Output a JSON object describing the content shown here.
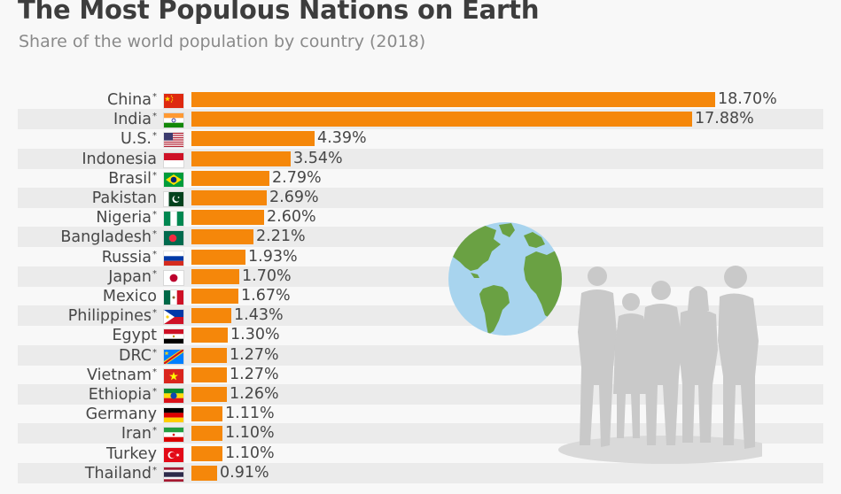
{
  "header": {
    "title": "The Most Populous Nations on Earth",
    "subtitle": "Share of the world population by country (2018)"
  },
  "colors": {
    "bar": "#f5870a",
    "stripe": "#ebebeb",
    "background": "#f8f8f8",
    "globe_ocean": "#a8d4ee",
    "globe_land": "#6aa143",
    "silhouette": "#c9c9c9"
  },
  "illustration": {
    "globe_icon": "globe-icon",
    "people_icon": "people-silhouette-icon"
  },
  "rows": [
    {
      "country": "China",
      "asterisk": "*",
      "value": "18.70%",
      "flag": "china"
    },
    {
      "country": "India",
      "asterisk": "*",
      "value": "17.88%",
      "flag": "india"
    },
    {
      "country": "U.S.",
      "asterisk": "*",
      "value": "4.39%",
      "flag": "us"
    },
    {
      "country": "Indonesia",
      "asterisk": "",
      "value": "3.54%",
      "flag": "indonesia"
    },
    {
      "country": "Brasil",
      "asterisk": "*",
      "value": "2.79%",
      "flag": "brazil"
    },
    {
      "country": "Pakistan",
      "asterisk": "",
      "value": "2.69%",
      "flag": "pakistan"
    },
    {
      "country": "Nigeria",
      "asterisk": "*",
      "value": "2.60%",
      "flag": "nigeria"
    },
    {
      "country": "Bangladesh",
      "asterisk": "*",
      "value": "2.21%",
      "flag": "bangladesh"
    },
    {
      "country": "Russia",
      "asterisk": "*",
      "value": "1.93%",
      "flag": "russia"
    },
    {
      "country": "Japan",
      "asterisk": "*",
      "value": "1.70%",
      "flag": "japan"
    },
    {
      "country": "Mexico",
      "asterisk": "",
      "value": "1.67%",
      "flag": "mexico"
    },
    {
      "country": "Philippines",
      "asterisk": "*",
      "value": "1.43%",
      "flag": "philippines"
    },
    {
      "country": "Egypt",
      "asterisk": "",
      "value": "1.30%",
      "flag": "egypt"
    },
    {
      "country": "DRC",
      "asterisk": "*",
      "value": "1.27%",
      "flag": "drc"
    },
    {
      "country": "Vietnam",
      "asterisk": "*",
      "value": "1.27%",
      "flag": "vietnam"
    },
    {
      "country": "Ethiopia",
      "asterisk": "*",
      "value": "1.26%",
      "flag": "ethiopia"
    },
    {
      "country": "Germany",
      "asterisk": "",
      "value": "1.11%",
      "flag": "germany"
    },
    {
      "country": "Iran",
      "asterisk": "*",
      "value": "1.10%",
      "flag": "iran"
    },
    {
      "country": "Turkey",
      "asterisk": "",
      "value": "1.10%",
      "flag": "turkey"
    },
    {
      "country": "Thailand",
      "asterisk": "*",
      "value": "0.91%",
      "flag": "thailand"
    }
  ],
  "chart_data": {
    "type": "bar",
    "orientation": "horizontal",
    "title": "The Most Populous Nations on Earth",
    "subtitle": "Share of the world population by country (2018)",
    "xlabel": "",
    "ylabel": "",
    "unit": "%",
    "categories": [
      "China*",
      "India*",
      "U.S.*",
      "Indonesia",
      "Brasil*",
      "Pakistan",
      "Nigeria*",
      "Bangladesh*",
      "Russia*",
      "Japan*",
      "Mexico",
      "Philippines*",
      "Egypt",
      "DRC*",
      "Vietnam*",
      "Ethiopia*",
      "Germany",
      "Iran*",
      "Turkey",
      "Thailand*"
    ],
    "values": [
      18.7,
      17.88,
      4.39,
      3.54,
      2.79,
      2.69,
      2.6,
      2.21,
      1.93,
      1.7,
      1.67,
      1.43,
      1.3,
      1.27,
      1.27,
      1.26,
      1.11,
      1.1,
      1.1,
      0.91
    ],
    "data_labels": true,
    "grid": false,
    "legend": "none",
    "alternating_row_stripes": true
  }
}
